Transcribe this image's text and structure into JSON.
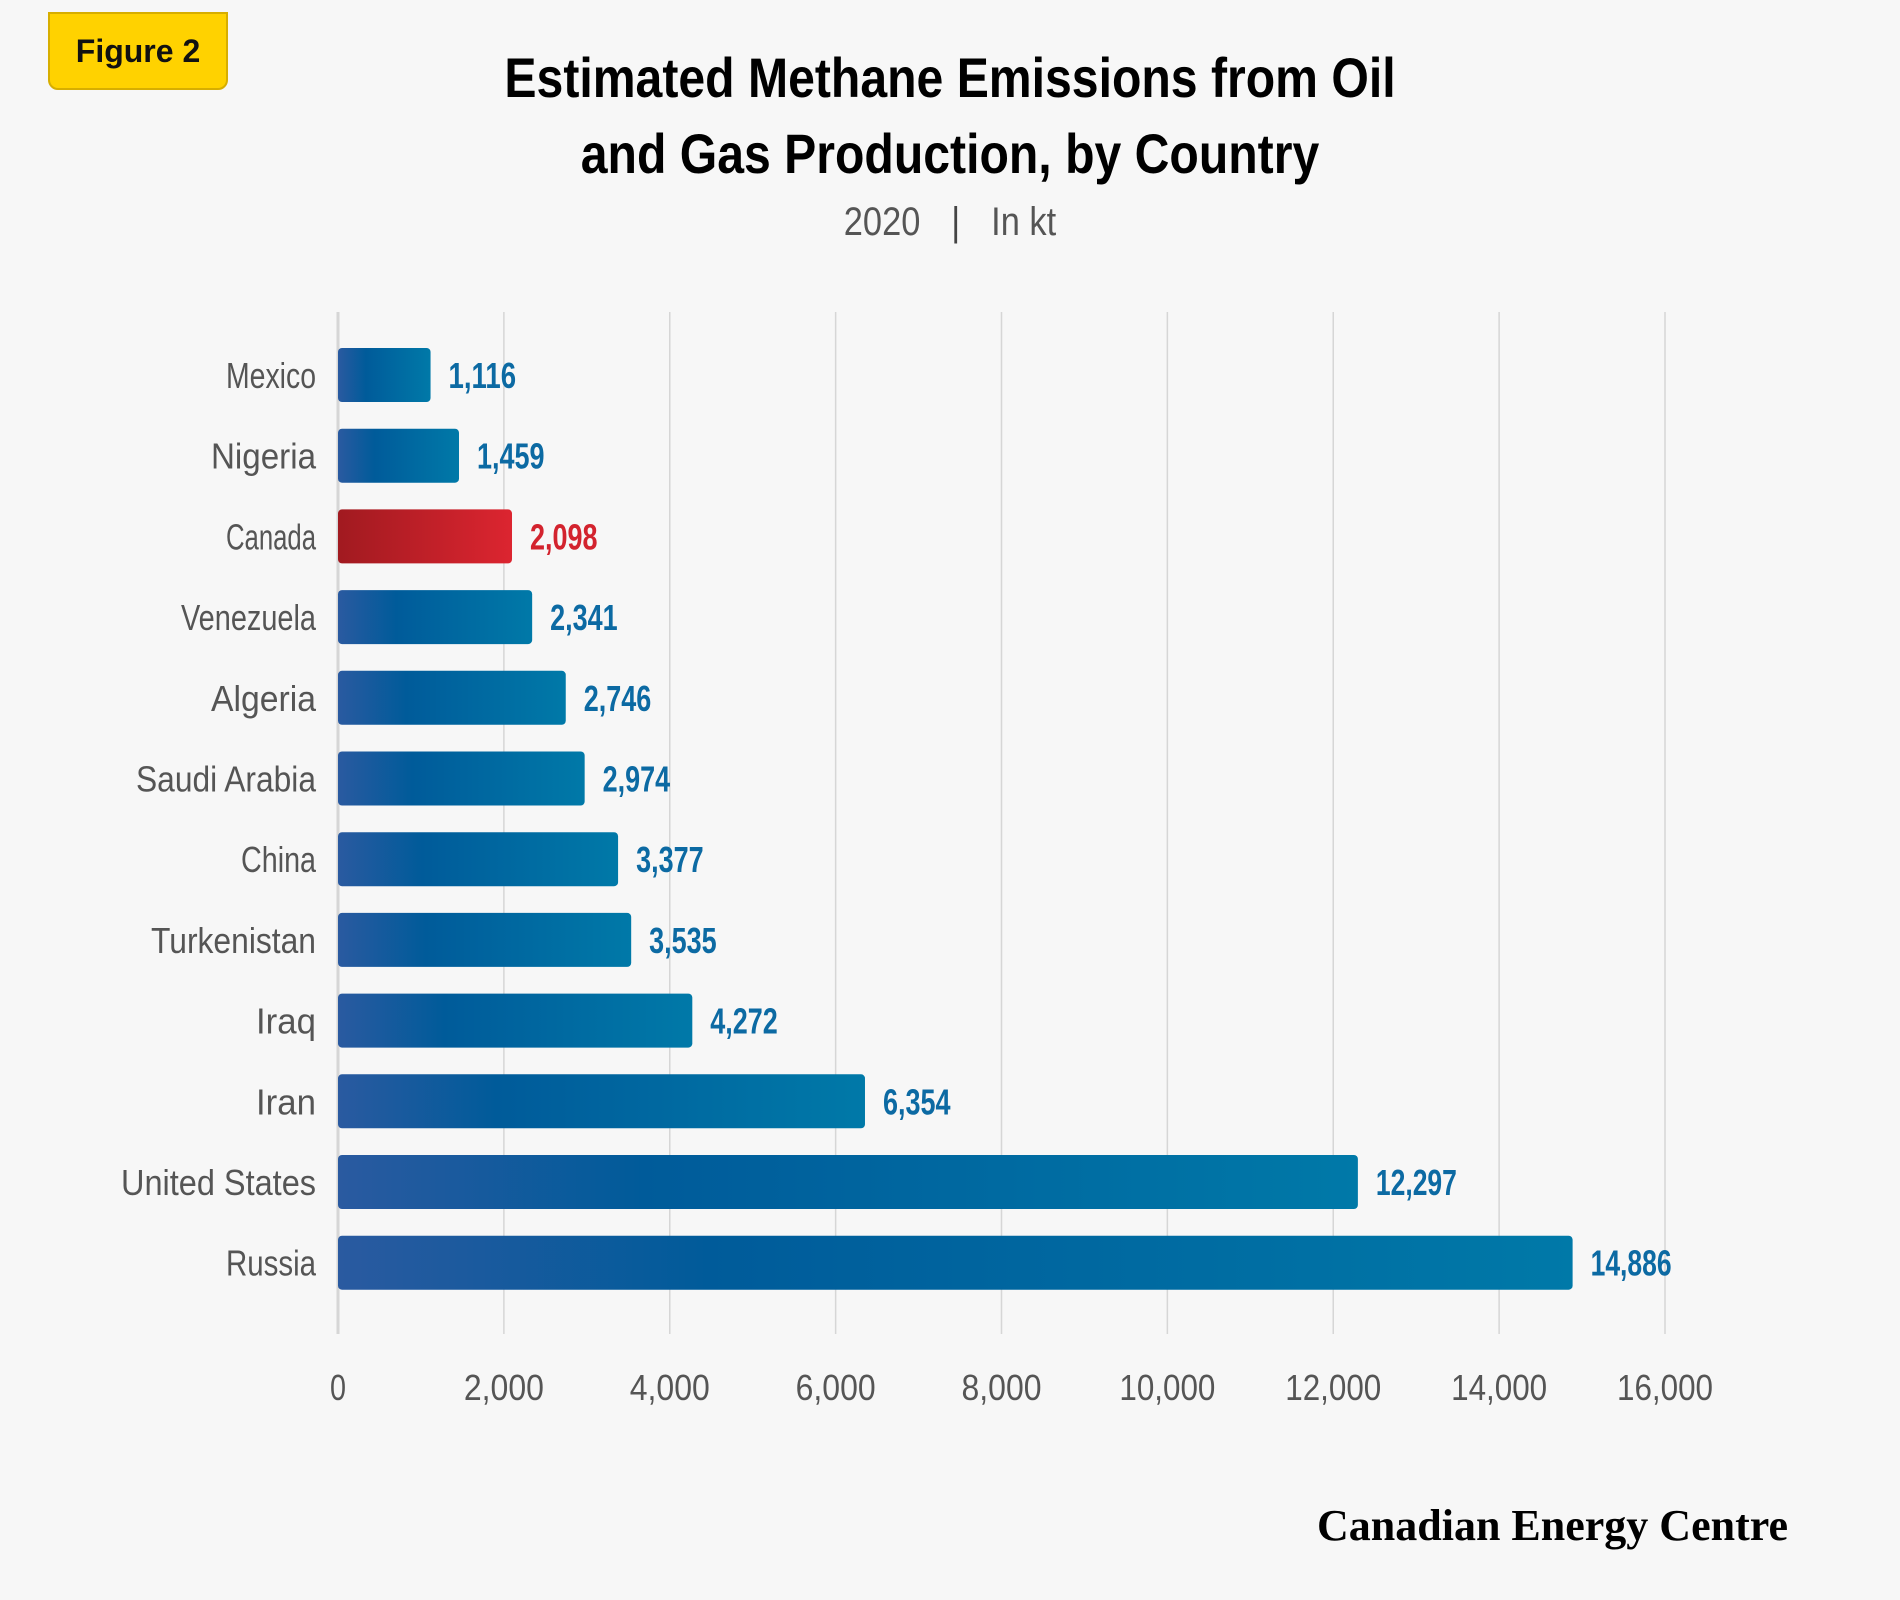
{
  "badge": "Figure 2",
  "title_line1": "Estimated Methane Emissions from Oil",
  "title_line2": "and Gas Production, by Country",
  "subtitle_year": "2020",
  "subtitle_sep": "|",
  "subtitle_unit": "In kt",
  "brand": "Canadian Energy Centre",
  "colors": {
    "bar_blue_start": "#2a5aa0",
    "bar_blue_mid": "#005b9a",
    "bar_blue_end": "#0079a8",
    "bar_red_start": "#a11a20",
    "bar_red_end": "#dc2530",
    "label_blue": "#0c6aa3",
    "label_red": "#d3232e",
    "country_text": "#555555",
    "grid": "#d6d6d6"
  },
  "chart_data": {
    "type": "bar",
    "orientation": "horizontal",
    "categories": [
      "Mexico",
      "Nigeria",
      "Canada",
      "Venezuela",
      "Algeria",
      "Saudi Arabia",
      "China",
      "Turkenistan",
      "Iraq",
      "Iran",
      "United States",
      "Russia"
    ],
    "values": [
      1116,
      1459,
      2098,
      2341,
      2746,
      2974,
      3377,
      3535,
      4272,
      6354,
      12297,
      14886
    ],
    "value_labels": [
      "1,116",
      "1,459",
      "2,098",
      "2,341",
      "2,746",
      "2,974",
      "3,377",
      "3,535",
      "4,272",
      "6,354",
      "12,297",
      "14,886"
    ],
    "highlight": "Canada",
    "xlim": [
      0,
      16000
    ],
    "xticks": [
      0,
      2000,
      4000,
      6000,
      8000,
      10000,
      12000,
      14000,
      16000
    ],
    "xtick_labels": [
      "0",
      "2,000",
      "4,000",
      "6,000",
      "8,000",
      "10,000",
      "12,000",
      "14,000",
      "16,000"
    ],
    "grid": true
  }
}
